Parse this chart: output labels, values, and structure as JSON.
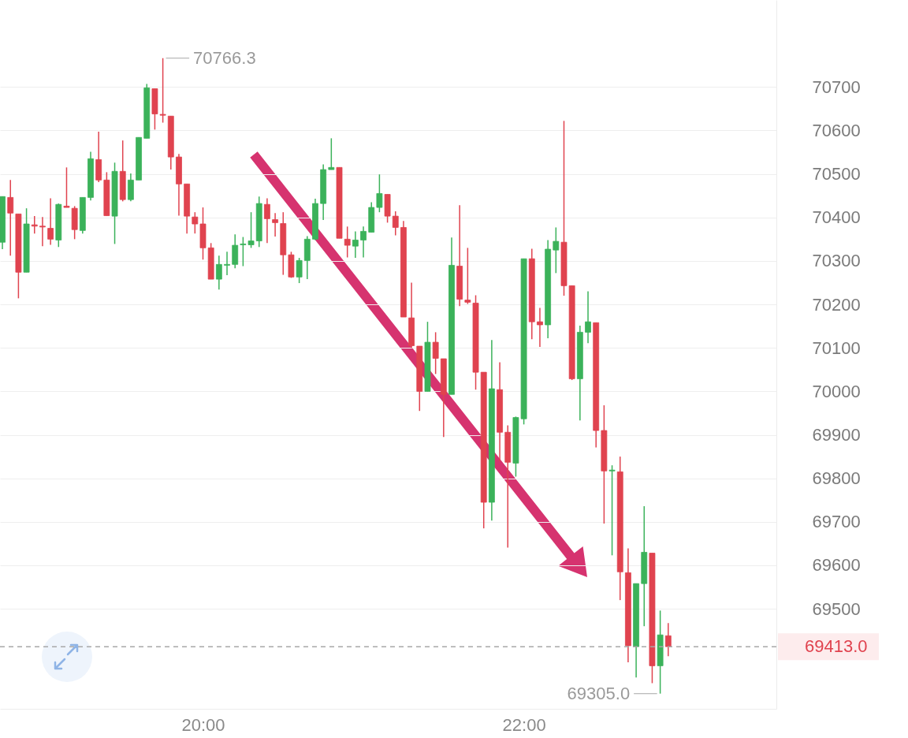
{
  "chart_data": {
    "type": "candlestick",
    "x": [
      18.75,
      18.8,
      18.85,
      18.9,
      18.95,
      19,
      19.05,
      19.1,
      19.15,
      19.2,
      19.25,
      19.3,
      19.35,
      19.4,
      19.45,
      19.5,
      19.55,
      19.6,
      19.65,
      19.7,
      19.75,
      19.8,
      19.85,
      19.9,
      19.95,
      20,
      20.05,
      20.1,
      20.15,
      20.2,
      20.25,
      20.3,
      20.35,
      20.4,
      20.45,
      20.5,
      20.55,
      20.6,
      20.65,
      20.7,
      20.75,
      20.8,
      20.85,
      20.9,
      20.95,
      21,
      21.05,
      21.1,
      21.15,
      21.2,
      21.25,
      21.3,
      21.35,
      21.4,
      21.45,
      21.5,
      21.55,
      21.6,
      21.65,
      21.7,
      21.75,
      21.8,
      21.85,
      21.9,
      21.95,
      22,
      22.05,
      22.1,
      22.15,
      22.2,
      22.25,
      22.3,
      22.35,
      22.4,
      22.45,
      22.5,
      22.55,
      22.6,
      22.65,
      22.7,
      22.75,
      22.8,
      22.85,
      22.9
    ],
    "ohlc": [
      [
        70343,
        70448,
        70327,
        70448
      ],
      [
        70446,
        70486,
        70312,
        70410
      ],
      [
        70408,
        70408,
        70214,
        70274
      ],
      [
        70274,
        70421,
        70274,
        70385
      ],
      [
        70383,
        70403,
        70363,
        70380
      ],
      [
        70380,
        70401,
        70334,
        70378
      ],
      [
        70375,
        70444,
        70337,
        70350
      ],
      [
        70348,
        70432,
        70332,
        70430
      ],
      [
        70426,
        70515,
        70423,
        70423
      ],
      [
        70421,
        70426,
        70350,
        70372
      ],
      [
        70370,
        70446,
        70363,
        70446
      ],
      [
        70446,
        70551,
        70439,
        70535
      ],
      [
        70533,
        70597,
        70481,
        70486
      ],
      [
        70486,
        70504,
        70404,
        70404
      ],
      [
        70403,
        70526,
        70339,
        70506
      ],
      [
        70506,
        70577,
        70437,
        70441
      ],
      [
        70441,
        70501,
        70437,
        70486
      ],
      [
        70486,
        70584,
        70486,
        70584
      ],
      [
        70582,
        70707,
        70582,
        70698
      ],
      [
        70696,
        70696,
        70602,
        70638
      ],
      [
        70637,
        70766.3,
        70618,
        70635
      ],
      [
        70633,
        70633,
        70510,
        70539
      ],
      [
        70539,
        70546,
        70404,
        70477
      ],
      [
        70477,
        70477,
        70363,
        70403
      ],
      [
        70401,
        70412,
        70363,
        70385
      ],
      [
        70385,
        70423,
        70303,
        70330
      ],
      [
        70330,
        70341,
        70258,
        70258
      ],
      [
        70258,
        70312,
        70234,
        70292
      ],
      [
        70290,
        70321,
        70267,
        70292
      ],
      [
        70292,
        70361,
        70283,
        70336
      ],
      [
        70337,
        70355,
        70288,
        70339
      ],
      [
        70337,
        70412,
        70330,
        70346
      ],
      [
        70346,
        70448,
        70332,
        70432
      ],
      [
        70430,
        70444,
        70341,
        70397
      ],
      [
        70395,
        70410,
        70356,
        70388
      ],
      [
        70386,
        70412,
        70268,
        70314
      ],
      [
        70314,
        70321,
        70261,
        70263
      ],
      [
        70263,
        70307,
        70249,
        70301
      ],
      [
        70301,
        70357,
        70258,
        70350
      ],
      [
        70350,
        70443,
        70348,
        70432
      ],
      [
        70432,
        70522,
        70394,
        70510
      ],
      [
        70510,
        70582,
        70510,
        70515
      ],
      [
        70515,
        70515,
        70352,
        70352
      ],
      [
        70350,
        70379,
        70308,
        70336
      ],
      [
        70334,
        70368,
        70307,
        70348
      ],
      [
        70348,
        70379,
        70308,
        70368
      ],
      [
        70366,
        70435,
        70366,
        70423
      ],
      [
        70423,
        70499,
        70412,
        70455
      ],
      [
        70453,
        70453,
        70388,
        70403
      ],
      [
        70403,
        70414,
        70359,
        70377
      ],
      [
        70377,
        70392,
        70171,
        70171
      ],
      [
        70169,
        70250,
        70100,
        70105
      ],
      [
        70104,
        70104,
        69955,
        70000
      ],
      [
        70000,
        70160,
        70000,
        70113
      ],
      [
        70113,
        70136,
        70040,
        70076
      ],
      [
        70075,
        70075,
        69895,
        69993
      ],
      [
        69993,
        70354,
        69993,
        70290
      ],
      [
        70288,
        70428,
        70196,
        70212
      ],
      [
        70210,
        70330,
        70201,
        70205
      ],
      [
        70203,
        70221,
        70004,
        70044
      ],
      [
        70044,
        70044,
        69685,
        69745
      ],
      [
        69745,
        70118,
        69703,
        70006
      ],
      [
        70004,
        70067,
        69839,
        69906
      ],
      [
        69906,
        69922,
        69641,
        69837
      ],
      [
        69835,
        69942,
        69804,
        69940
      ],
      [
        69937,
        70305,
        69924,
        70305
      ],
      [
        70305,
        70328,
        70120,
        70160
      ],
      [
        70160,
        70192,
        70102,
        70153
      ],
      [
        70153,
        70348,
        70122,
        70327
      ],
      [
        70325,
        70377,
        70272,
        70345
      ],
      [
        70343,
        70622,
        70220,
        70243
      ],
      [
        70243,
        70243,
        70026,
        70029
      ],
      [
        70029,
        70151,
        69933,
        70136
      ],
      [
        70136,
        70230,
        70111,
        70160
      ],
      [
        70158,
        70158,
        69871,
        69910
      ],
      [
        69910,
        69968,
        69696,
        69817
      ],
      [
        69817,
        69830,
        69623,
        69819
      ],
      [
        69815,
        69850,
        69520,
        69585
      ],
      [
        69583,
        69639,
        69377,
        69415
      ],
      [
        69413,
        69558,
        69342,
        69558
      ],
      [
        69558,
        69736,
        69460,
        69630
      ],
      [
        69628,
        69628,
        69329,
        69369
      ],
      [
        69369,
        69496,
        69305,
        69440
      ],
      [
        69438,
        69467,
        69391,
        69413
      ]
    ],
    "colors": [
      "#3bb25a",
      "#e0434f",
      "#e0434f",
      "#3bb25a",
      "#e0434f",
      "#e0434f",
      "#e0434f",
      "#3bb25a",
      "#e0434f",
      "#e0434f",
      "#3bb25a",
      "#3bb25a",
      "#e0434f",
      "#e0434f",
      "#3bb25a",
      "#e0434f",
      "#3bb25a",
      "#3bb25a",
      "#3bb25a",
      "#e0434f",
      "#e0434f",
      "#e0434f",
      "#e0434f",
      "#e0434f",
      "#e0434f",
      "#e0434f",
      "#e0434f",
      "#3bb25a",
      "#3bb25a",
      "#3bb25a",
      "#3bb25a",
      "#3bb25a",
      "#3bb25a",
      "#e0434f",
      "#e0434f",
      "#e0434f",
      "#e0434f",
      "#3bb25a",
      "#3bb25a",
      "#3bb25a",
      "#3bb25a",
      "#3bb25a",
      "#e0434f",
      "#e0434f",
      "#3bb25a",
      "#3bb25a",
      "#3bb25a",
      "#3bb25a",
      "#e0434f",
      "#e0434f",
      "#e0434f",
      "#e0434f",
      "#e0434f",
      "#3bb25a",
      "#e0434f",
      "#e0434f",
      "#3bb25a",
      "#e0434f",
      "#e0434f",
      "#e0434f",
      "#e0434f",
      "#3bb25a",
      "#e0434f",
      "#e0434f",
      "#3bb25a",
      "#3bb25a",
      "#e0434f",
      "#e0434f",
      "#3bb25a",
      "#3bb25a",
      "#e0434f",
      "#e0434f",
      "#3bb25a",
      "#3bb25a",
      "#e0434f",
      "#e0434f",
      "#3bb25a",
      "#e0434f",
      "#e0434f",
      "#3bb25a",
      "#3bb25a",
      "#e0434f",
      "#3bb25a",
      "#e0434f"
    ],
    "xlim": [
      18.735,
      23.574
    ],
    "xticks": [
      {
        "value": 20,
        "label": "20:00"
      },
      {
        "value": 22,
        "label": "22:00"
      }
    ],
    "ylim": [
      69270,
      70900
    ],
    "yticks": [
      69500,
      69600,
      69700,
      69800,
      69900,
      70000,
      70100,
      70200,
      70300,
      70400,
      70500,
      70600,
      70700
    ],
    "grid": "y",
    "ref_lines": [
      {
        "axis": "y",
        "value": 69413,
        "label": "69413.0",
        "color": "#a8a8a8",
        "line_style": "dashed"
      }
    ],
    "annotations": [
      {
        "text": "70766.3",
        "x": 19.75,
        "y": 70766.3
      },
      {
        "text": "69305.0",
        "x": 22.85,
        "y": 69305
      }
    ]
  }
}
